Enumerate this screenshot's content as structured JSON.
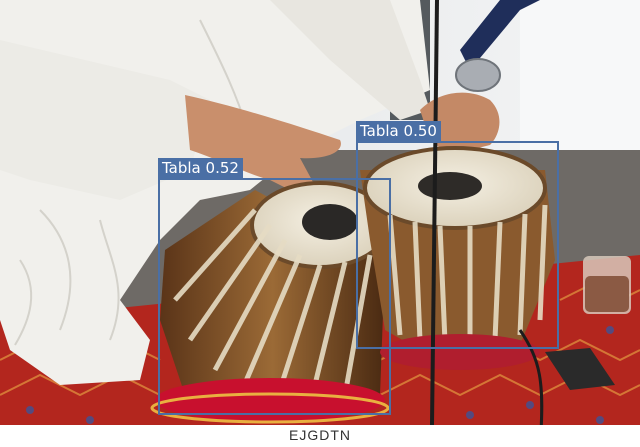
{
  "image": {
    "subject": "tabla",
    "watermark_text": "EJGDTN",
    "colors": {
      "box": "#4a6fa5",
      "label_text": "#ffffff",
      "rug_red": "#b3261e",
      "garment_white": "#f1f0ec",
      "wall": "#e9ebec"
    }
  },
  "detections": [
    {
      "label": "Tabla",
      "score": "0.52",
      "text": "Tabla 0.52"
    },
    {
      "label": "Tabla",
      "score": "0.50",
      "text": "Tabla 0.50"
    }
  ]
}
